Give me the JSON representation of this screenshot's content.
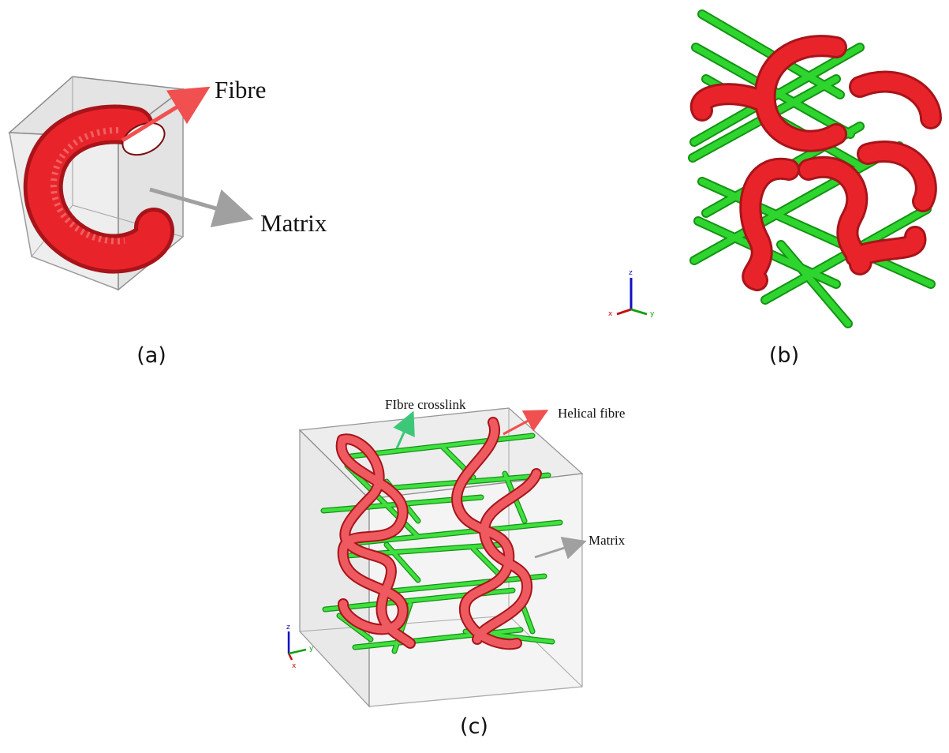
{
  "panels": {
    "a": {
      "caption": "(a)",
      "labels": {
        "fibre": "Fibre",
        "matrix": "Matrix"
      }
    },
    "b": {
      "caption": "(b)",
      "axes": {
        "z": "z",
        "x": "x",
        "y": "y"
      }
    },
    "c": {
      "caption": "(c)",
      "labels": {
        "crosslink": "FIbre crosslink",
        "helical": "Helical fibre",
        "matrix": "Matrix"
      },
      "axes": {
        "z": "z",
        "x": "x",
        "y": "y"
      }
    }
  },
  "colors": {
    "fibre": "#e8242a",
    "fibre_dark": "#a8141a",
    "crosslink": "#2ed52e",
    "crosslink_dark": "#149214",
    "matrix_fill": "#e6e6e6",
    "matrix_edge": "#8a8a8a",
    "arrow_red": "#f05050",
    "arrow_grey": "#a0a0a0",
    "arrow_green": "#3cc878"
  }
}
